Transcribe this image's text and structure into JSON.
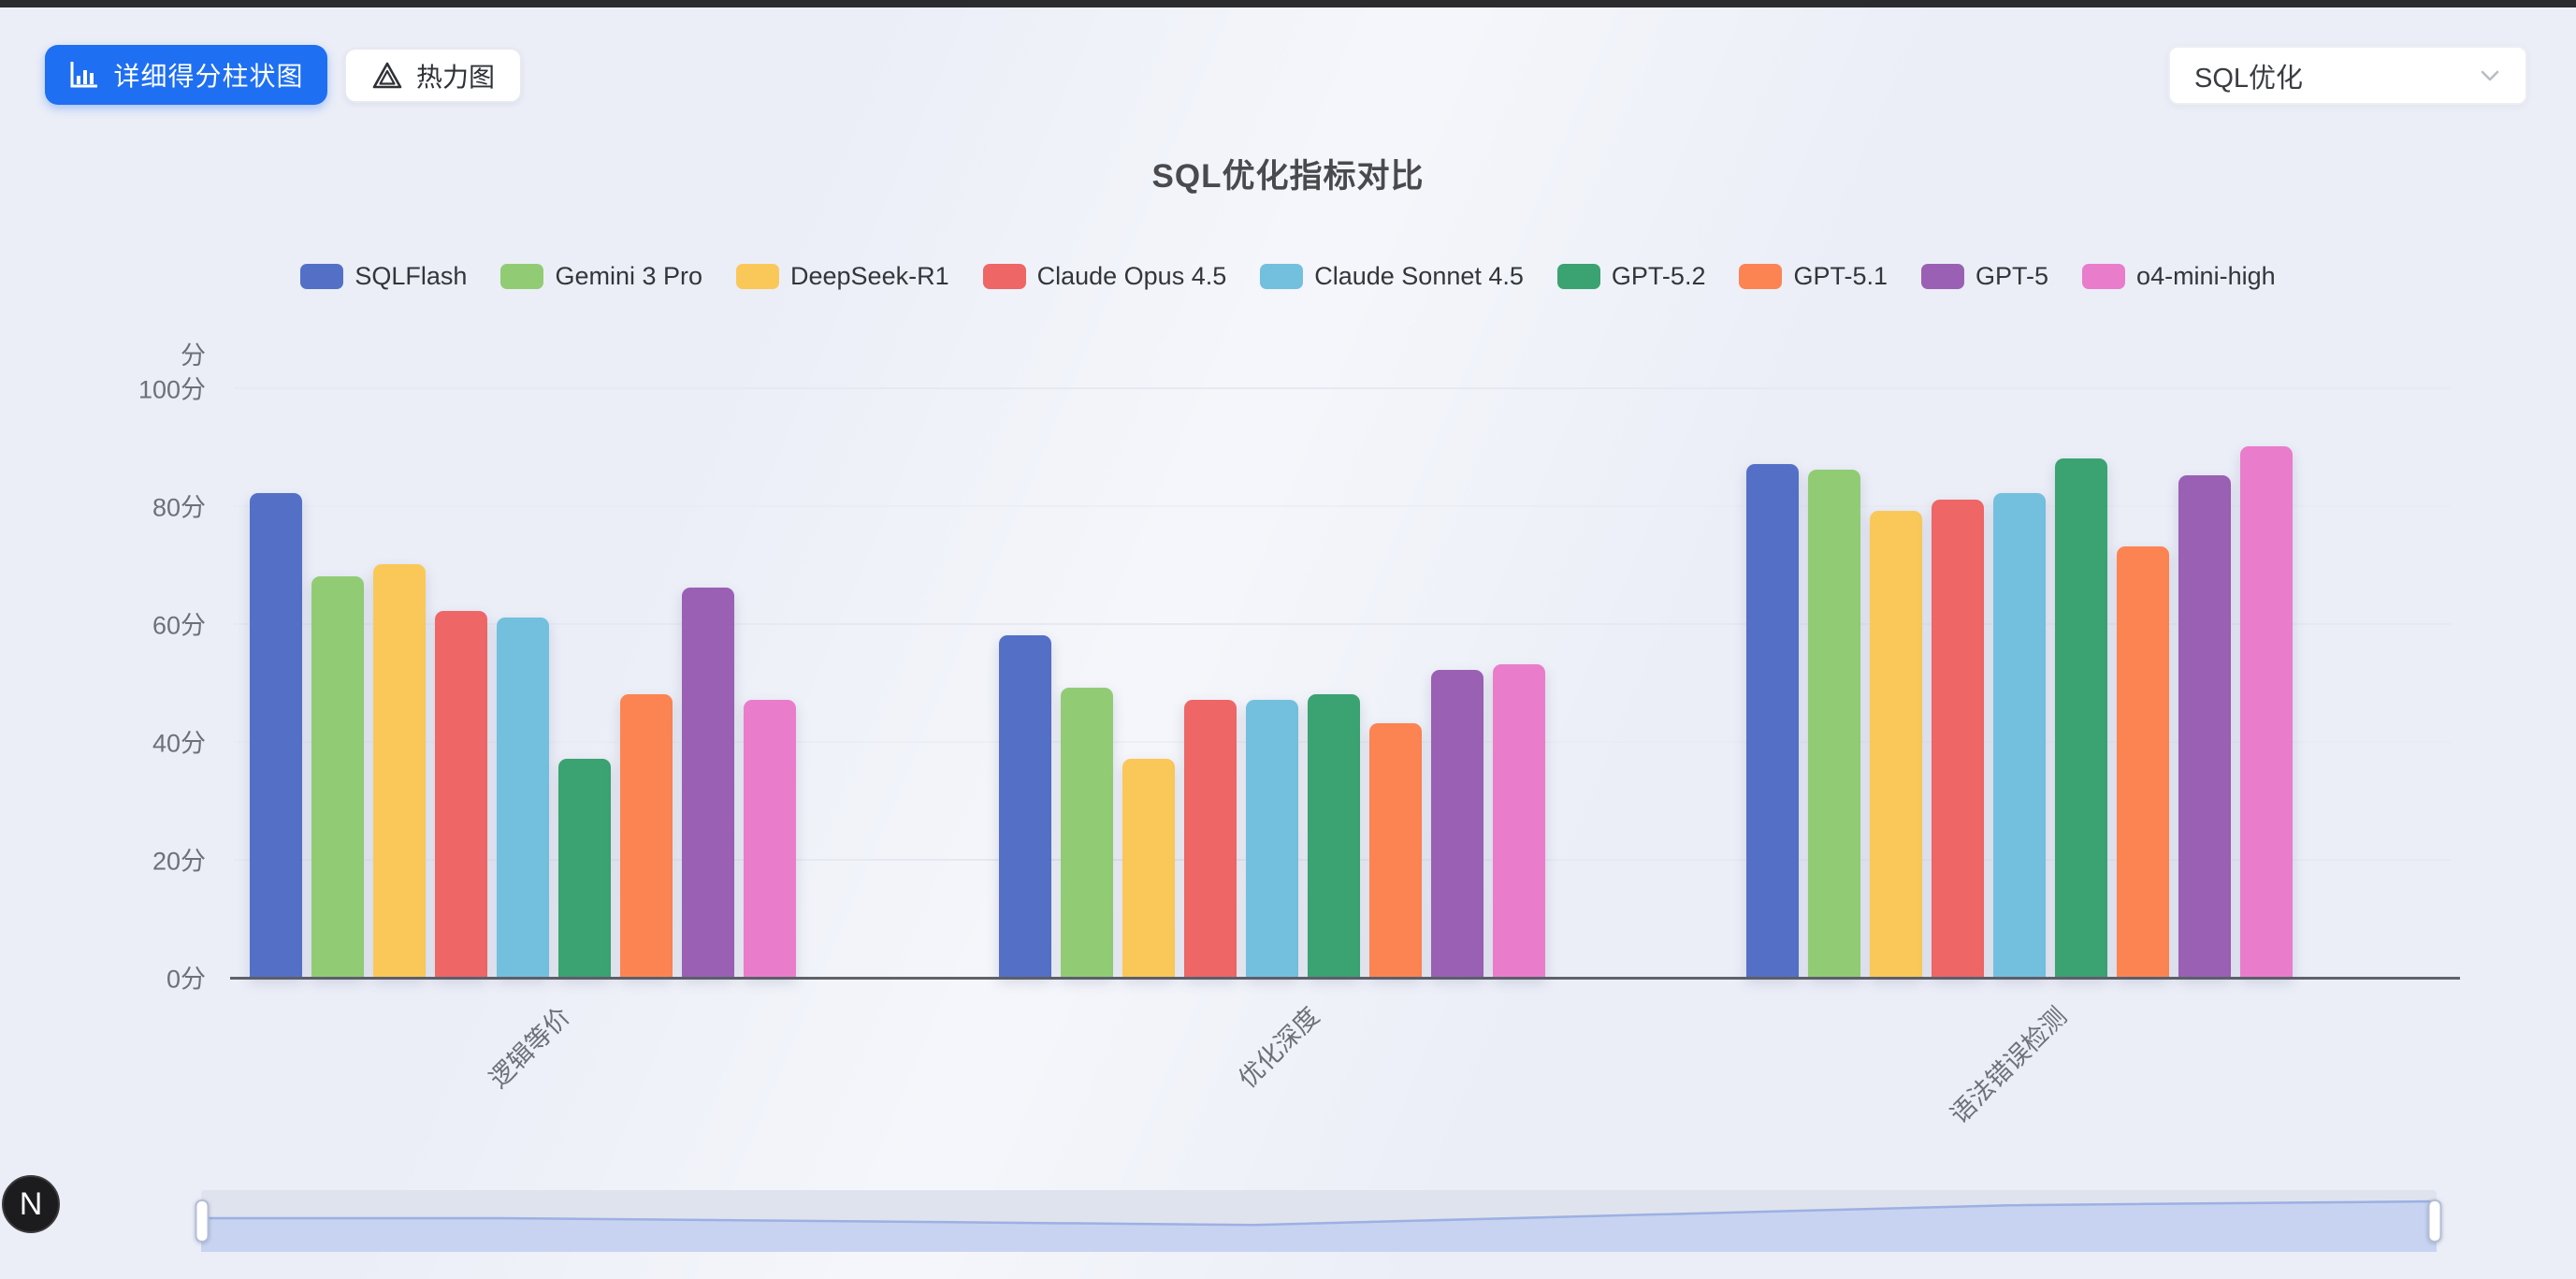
{
  "toolbar": {
    "bar_chart_button": {
      "label": "详细得分柱状图"
    },
    "heatmap_button": {
      "label": "热力图"
    },
    "metric_select": {
      "value": "SQL优化"
    }
  },
  "chart_data": {
    "type": "bar",
    "title": "SQL优化指标对比",
    "categories": [
      "逻辑等价",
      "优化深度",
      "语法错误检测"
    ],
    "series": [
      {
        "name": "SQLFlash",
        "color": "#5470C6",
        "values": [
          82,
          58,
          87
        ]
      },
      {
        "name": "Gemini 3 Pro",
        "color": "#91CC75",
        "values": [
          68,
          49,
          86
        ]
      },
      {
        "name": "DeepSeek-R1",
        "color": "#FAC858",
        "values": [
          70,
          37,
          79
        ]
      },
      {
        "name": "Claude Opus 4.5",
        "color": "#EE6666",
        "values": [
          62,
          47,
          81
        ]
      },
      {
        "name": "Claude Sonnet 4.5",
        "color": "#73C0DE",
        "values": [
          61,
          47,
          82
        ]
      },
      {
        "name": "GPT-5.2",
        "color": "#3BA272",
        "values": [
          37,
          48,
          88
        ]
      },
      {
        "name": "GPT-5.1",
        "color": "#FC8452",
        "values": [
          48,
          43,
          73
        ]
      },
      {
        "name": "GPT-5",
        "color": "#9A60B4",
        "values": [
          66,
          52,
          85
        ]
      },
      {
        "name": "o4-mini-high",
        "color": "#EA7CCC",
        "values": [
          47,
          53,
          90
        ]
      }
    ],
    "ylabel": "分",
    "yticks": [
      "0分",
      "20分",
      "40分",
      "60分",
      "80分",
      "100分"
    ],
    "ytick_values": [
      0,
      20,
      40,
      60,
      80,
      100
    ],
    "ylim": [
      0,
      100
    ],
    "legend_position": "top",
    "grid": true,
    "xlabel_rotation_deg": 45
  },
  "datazoom": {
    "shadow_values": [
      60,
      48,
      83
    ]
  },
  "floating_badge": {
    "label": "N"
  }
}
